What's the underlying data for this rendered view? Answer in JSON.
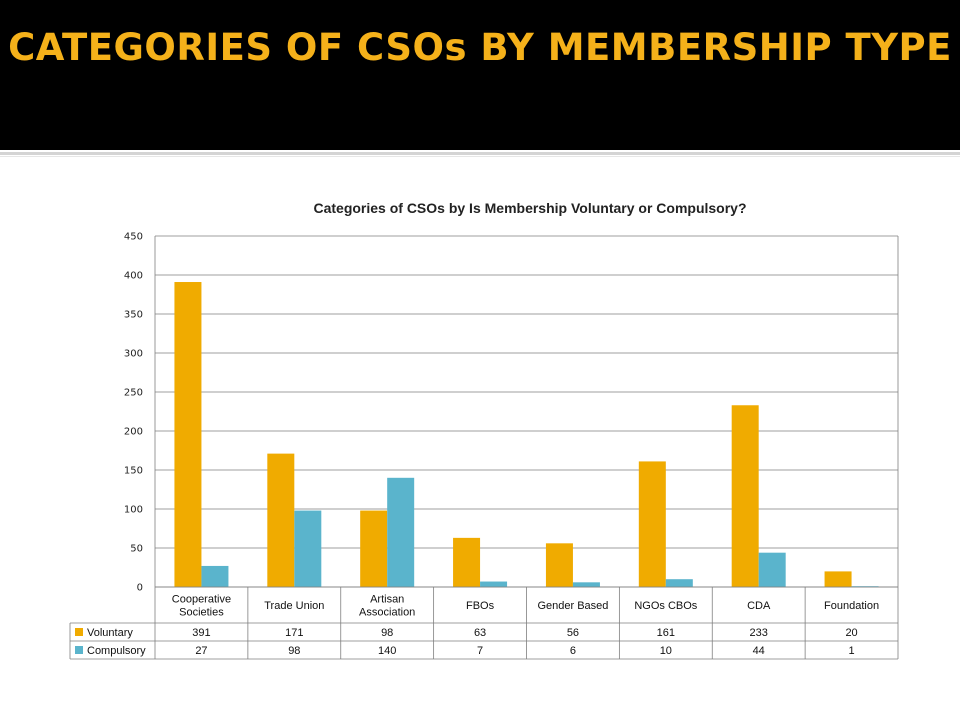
{
  "slide": {
    "title": "CATEGORIES OF CSOs BY MEMBERSHIP TYPE"
  },
  "chart_data": {
    "type": "bar",
    "title": "Categories of CSOs by Is Membership Voluntary or Compulsory?",
    "xlabel": "",
    "ylabel": "",
    "categories": [
      "Cooperative Societies",
      "Trade Union",
      "Artisan Association",
      "FBOs",
      "Gender Based",
      "NGOs CBOs",
      "CDA",
      "Foundation"
    ],
    "category_lines": [
      [
        "Cooperative",
        "Societies"
      ],
      [
        "Trade Union"
      ],
      [
        "Artisan",
        "Association"
      ],
      [
        "FBOs"
      ],
      [
        "Gender Based"
      ],
      [
        "NGOs CBOs"
      ],
      [
        "CDA"
      ],
      [
        "Foundation"
      ]
    ],
    "series": [
      {
        "name": "Voluntary",
        "values": [
          391,
          171,
          98,
          63,
          56,
          161,
          233,
          20
        ],
        "color": "#f0ab00"
      },
      {
        "name": "Compulsory",
        "values": [
          27,
          98,
          140,
          7,
          6,
          10,
          44,
          1
        ],
        "color": "#5ab4cc"
      }
    ],
    "ylim": [
      0,
      450
    ],
    "yticks": [
      0,
      50,
      100,
      150,
      200,
      250,
      300,
      350,
      400,
      450
    ],
    "grid": true,
    "legend": "data-table"
  }
}
